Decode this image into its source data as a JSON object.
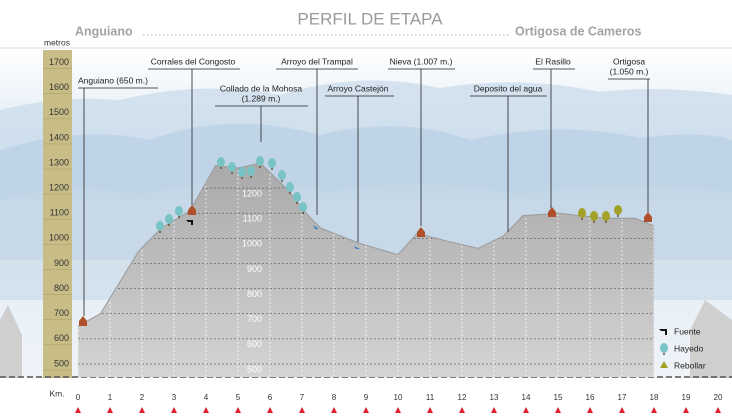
{
  "chart_data": {
    "type": "area",
    "title": "PERFIL DE ETAPA",
    "start": "Anguiano",
    "end": "Ortigosa de Cameros",
    "ylabel": "metros",
    "xlabel": "Km.",
    "x": [
      0,
      0.7,
      1.9,
      2.6,
      3.5,
      4.3,
      5.0,
      5.7,
      6.5,
      7.2,
      7.6,
      8.8,
      10.0,
      10.6,
      11.5,
      12.5,
      13.3,
      13.9,
      15.0,
      16.5,
      17.4,
      18.0
    ],
    "values": [
      650,
      700,
      950,
      1040,
      1110,
      1290,
      1280,
      1300,
      1200,
      1090,
      1040,
      980,
      935,
      1020,
      990,
      960,
      1010,
      1090,
      1100,
      1080,
      1080,
      1050
    ],
    "color": "#b9b9b9",
    "xlim": [
      0,
      20
    ],
    "xticks": [
      0,
      1,
      2,
      3,
      4,
      5,
      6,
      7,
      8,
      9,
      10,
      11,
      12,
      13,
      14,
      15,
      16,
      17,
      18,
      19,
      20
    ],
    "ylim": [
      400,
      1750
    ],
    "yticks": [
      500,
      600,
      700,
      800,
      900,
      1000,
      1100,
      1200,
      1300,
      1400,
      1500,
      1600,
      1700
    ],
    "grid": true,
    "annotations": [
      [
        "Anguiano (650 m.)"
      ],
      [
        "Corrales del Congosto"
      ],
      [
        "Collado de la Mohosa",
        "(1.289 m.)"
      ],
      [
        "Arroyo del Trampal"
      ],
      [
        "Arroyo Castejón"
      ],
      [
        "Nieva (1.007 m.)"
      ],
      [
        "Deposito del agua"
      ],
      [
        "El Rasillo"
      ],
      [
        "Ortigosa",
        "(1.050 m.)"
      ]
    ],
    "legend": [
      "Fuente",
      "Hayedo",
      "Rebollar"
    ]
  }
}
